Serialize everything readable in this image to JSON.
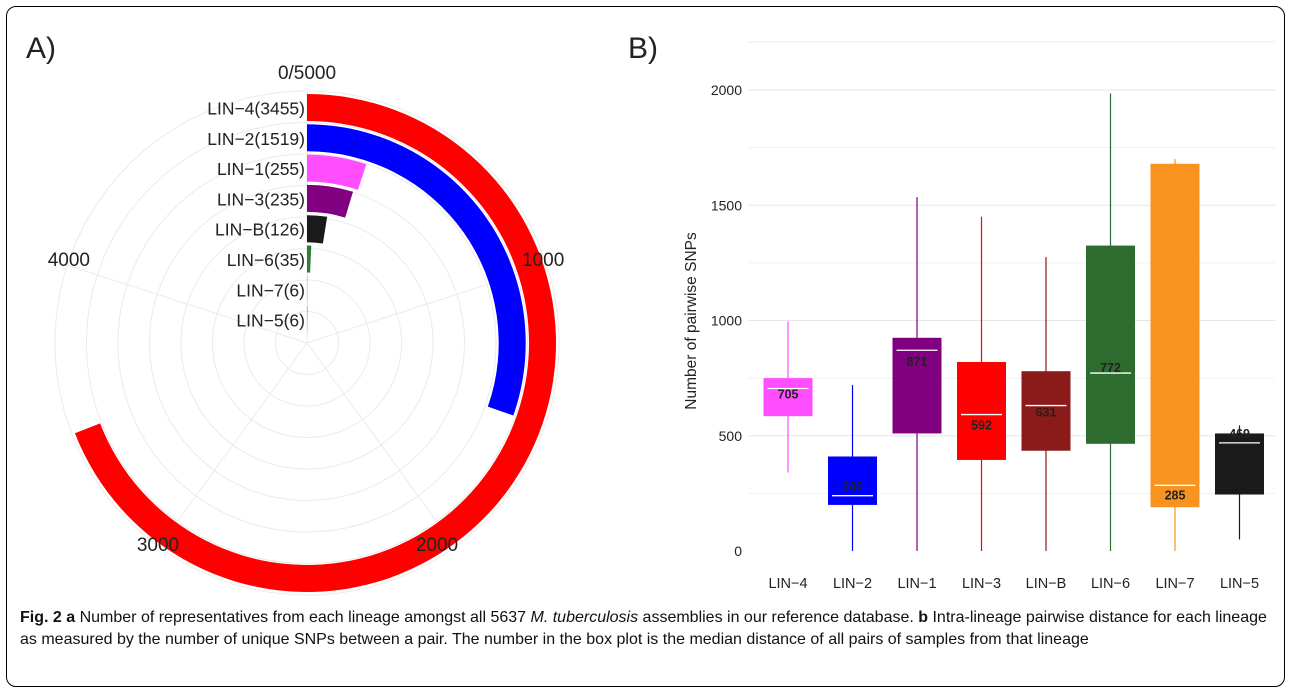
{
  "panel_a": {
    "letter": "A)"
  },
  "panel_b": {
    "letter": "B)"
  },
  "caption": {
    "fig_label": "Fig. 2",
    "a_letter": "a",
    "a_text_1": " Number of representatives from each lineage amongst all 5637 ",
    "a_italic": "M. tuberculosis",
    "a_text_2": " assemblies in our reference database. ",
    "b_letter": "b",
    "b_text": " Intra-lineage pairwise distance for each lineage as measured by the number of unique SNPs between a pair. The number in the box plot is the median distance of all pairs of samples from that lineage"
  },
  "chart_data": [
    {
      "type": "radial-bar",
      "panel": "A)",
      "theta_max": 5000,
      "theta_ticks": [
        {
          "value": 0,
          "label": "0/5000"
        },
        {
          "value": 1000,
          "label": "1000"
        },
        {
          "value": 2000,
          "label": "2000"
        },
        {
          "value": 3000,
          "label": "3000"
        },
        {
          "value": 4000,
          "label": "4000"
        }
      ],
      "grid": true,
      "bars": [
        {
          "label": "LIN−4(3455)",
          "value": 3455,
          "color": "#ff0000"
        },
        {
          "label": "LIN−2(1519)",
          "value": 1519,
          "color": "#0000ff"
        },
        {
          "label": "LIN−1(255)",
          "value": 255,
          "color": "#ff4dff"
        },
        {
          "label": "LIN−3(235)",
          "value": 235,
          "color": "#800080"
        },
        {
          "label": "LIN−B(126)",
          "value": 126,
          "color": "#1a1a1a"
        },
        {
          "label": "LIN−6(35)",
          "value": 35,
          "color": "#2e7d32"
        },
        {
          "label": "LIN−7(6)",
          "value": 6,
          "color": "#f7931e"
        },
        {
          "label": "LIN−5(6)",
          "value": 6,
          "color": "#1a1a1a"
        }
      ]
    },
    {
      "type": "box",
      "panel": "B)",
      "ylabel": "Number of pairwise SNPs",
      "ylim": [
        0,
        2100
      ],
      "yticks": [
        0,
        500,
        1000,
        1500,
        2000
      ],
      "grid": true,
      "categories": [
        "LIN−4",
        "LIN−2",
        "LIN−1",
        "LIN−3",
        "LIN−B",
        "LIN−6",
        "LIN−7",
        "LIN−5"
      ],
      "boxes": [
        {
          "min": 340,
          "q1": 585,
          "median": 705,
          "q3": 750,
          "max": 995,
          "color": "#ff4dff",
          "label_color": "#111"
        },
        {
          "min": 0,
          "q1": 200,
          "median": 240,
          "q3": 410,
          "max": 720,
          "color": "#0000ff",
          "label_color": "#ffffff"
        },
        {
          "min": 0,
          "q1": 510,
          "median": 871,
          "q3": 925,
          "max": 1535,
          "color": "#800080",
          "label_color": "#ffffff"
        },
        {
          "min": 0,
          "q1": 395,
          "median": 592,
          "q3": 820,
          "max": 1450,
          "color": "#ff0000",
          "label_color": "#111"
        },
        {
          "min": 0,
          "q1": 435,
          "median": 631,
          "q3": 780,
          "max": 1275,
          "color": "#8b1a1a",
          "label_color": "#ffffff"
        },
        {
          "min": 0,
          "q1": 465,
          "median": 772,
          "q3": 1325,
          "max": 1985,
          "color": "#2e6b2e",
          "label_color": "#ffffff"
        },
        {
          "min": 0,
          "q1": 190,
          "median": 285,
          "q3": 1680,
          "max": 1700,
          "color": "#f7931e",
          "label_color": "#111"
        },
        {
          "min": 50,
          "q1": 245,
          "median": 469,
          "q3": 510,
          "max": 545,
          "color": "#1a1a1a",
          "label_color": "#ffffff"
        }
      ]
    }
  ]
}
